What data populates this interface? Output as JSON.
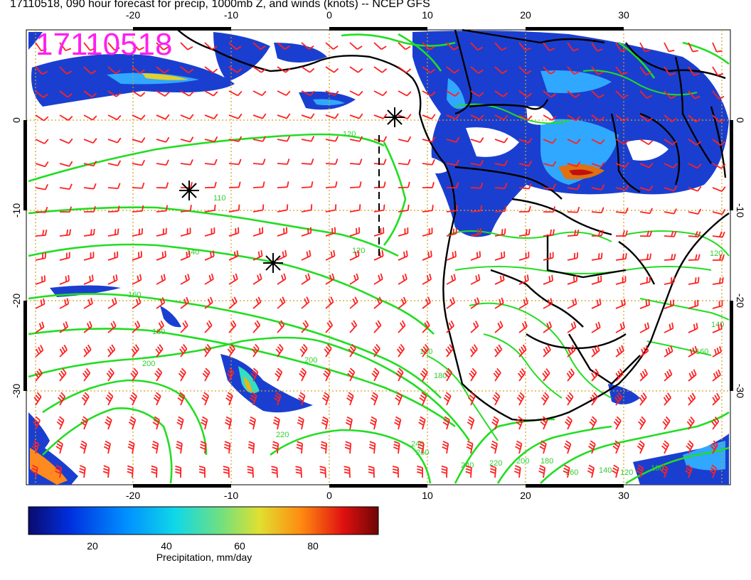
{
  "title": "17110518, 090 hour forecast for precip, 1000mb Z, and winds (knots) -- NCEP GFS",
  "stamp": "17110518",
  "lon_ticks": [
    "-20",
    "-10",
    "0",
    "10",
    "20",
    "30"
  ],
  "lat_ticks": [
    "0",
    "-10",
    "-20",
    "-30"
  ],
  "colorbar": {
    "label": "Precipitation, mm/day",
    "ticks": [
      "20",
      "40",
      "60",
      "80"
    ]
  },
  "contour_labels": [
    "120",
    "110",
    "140",
    "160",
    "180",
    "200",
    "200",
    "220",
    "240",
    "260",
    "240",
    "220",
    "200",
    "180",
    "160",
    "140",
    "120",
    "100",
    "120",
    "160",
    "180",
    "120",
    "140",
    "160"
  ],
  "colors": {
    "contour": "#22dd22",
    "barb": "#ff2020",
    "coast": "#000000",
    "grid": "#d4a020",
    "stamp": "#ff1ff0"
  }
}
